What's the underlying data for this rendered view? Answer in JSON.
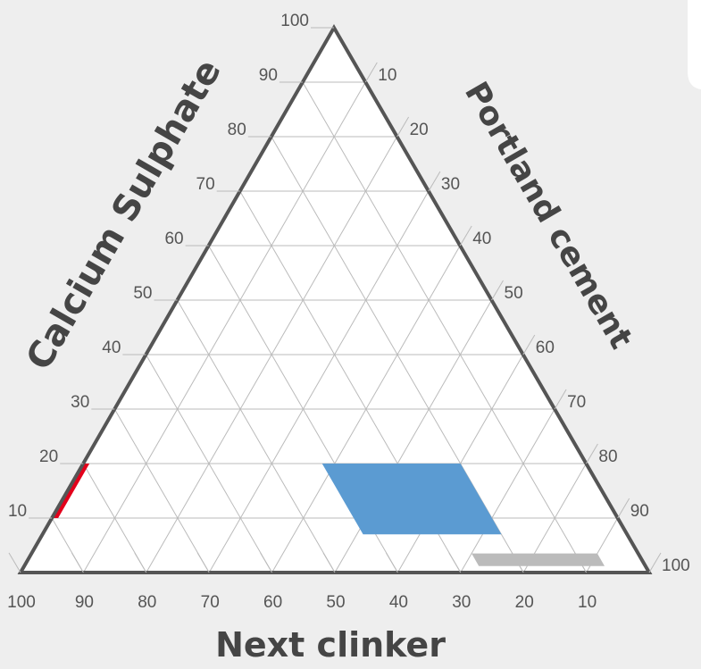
{
  "chart_data": {
    "type": "ternary",
    "axes": {
      "left": {
        "title": "Calcium Sulphate",
        "ticks": [
          "100",
          "90",
          "80",
          "70",
          "60",
          "50",
          "40",
          "30",
          "20",
          "10"
        ]
      },
      "right": {
        "title": "Portland cement",
        "ticks": [
          "10",
          "20",
          "30",
          "40",
          "50",
          "60",
          "70",
          "80",
          "90",
          "100"
        ]
      },
      "bottom": {
        "title": "Next clinker",
        "ticks": [
          "100",
          "90",
          "80",
          "70",
          "60",
          "50",
          "40",
          "30",
          "20",
          "10"
        ]
      }
    },
    "grid": true,
    "regions": [
      {
        "color": "#e3001b",
        "points": [
          {
            "calcium_sulphate": 20,
            "portland_cement": 0,
            "next_clinker": 80
          },
          {
            "calcium_sulphate": 20,
            "portland_cement": 1,
            "next_clinker": 79
          },
          {
            "calcium_sulphate": 10,
            "portland_cement": 1,
            "next_clinker": 89
          },
          {
            "calcium_sulphate": 10,
            "portland_cement": 0,
            "next_clinker": 90
          }
        ]
      },
      {
        "color": "#5b9bd2",
        "points": [
          {
            "calcium_sulphate": 20,
            "portland_cement": 38,
            "next_clinker": 42
          },
          {
            "calcium_sulphate": 20,
            "portland_cement": 60,
            "next_clinker": 20
          },
          {
            "calcium_sulphate": 7,
            "portland_cement": 73,
            "next_clinker": 20
          },
          {
            "calcium_sulphate": 7,
            "portland_cement": 51,
            "next_clinker": 42
          }
        ]
      },
      {
        "color": "#bbbbbb",
        "points": [
          {
            "calcium_sulphate": 3.5,
            "portland_cement": 70,
            "next_clinker": 26.5
          },
          {
            "calcium_sulphate": 3.5,
            "portland_cement": 90,
            "next_clinker": 6.5
          },
          {
            "calcium_sulphate": 1.2,
            "portland_cement": 92.3,
            "next_clinker": 6.5
          },
          {
            "calcium_sulphate": 1.2,
            "portland_cement": 72.3,
            "next_clinker": 26.5
          }
        ]
      }
    ],
    "colors": {
      "frame": "#555555",
      "grid": "#bbbbbb",
      "background": "#eeeeee",
      "plot_area": "#ffffff"
    }
  }
}
